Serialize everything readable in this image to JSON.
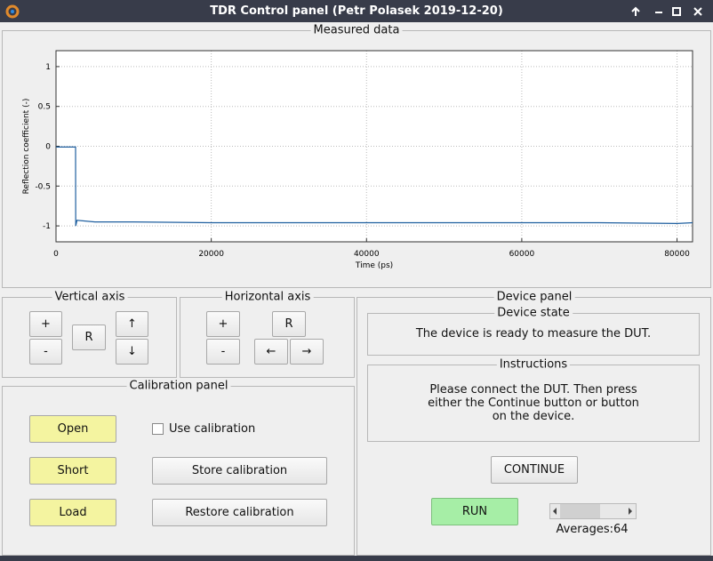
{
  "window": {
    "title": "TDR Control panel (Petr Polasek 2019-12-20)"
  },
  "chart_data": {
    "type": "line",
    "panel_title": "Measured data",
    "xlabel": "Time (ps)",
    "ylabel": "Reflection coefficient (-)",
    "x": [
      0,
      2400,
      2520,
      2530,
      2540,
      2700,
      5000,
      10000,
      20000,
      30000,
      40000,
      50000,
      60000,
      70000,
      80000,
      82000
    ],
    "values": [
      -0.01,
      -0.01,
      -0.01,
      -0.6,
      -1.0,
      -0.93,
      -0.95,
      -0.95,
      -0.96,
      -0.96,
      -0.96,
      -0.96,
      -0.96,
      -0.96,
      -0.97,
      -0.96
    ],
    "color": "#1f5f9f",
    "xlim": [
      0,
      82000
    ],
    "ylim": [
      -1.2,
      1.2
    ],
    "xticks": [
      0,
      20000,
      40000,
      60000,
      80000
    ],
    "yticks": [
      -1,
      -0.5,
      0,
      0.5,
      1
    ],
    "grid": true
  },
  "vertical_axis": {
    "title": "Vertical axis",
    "buttons": [
      "+",
      "-",
      "R",
      "↑",
      "↓"
    ]
  },
  "horizontal_axis": {
    "title": "Horizontal axis",
    "buttons": [
      "+",
      "-",
      "R",
      "←",
      "→"
    ]
  },
  "calibration": {
    "title": "Calibration panel",
    "buttons": [
      "Open",
      "Short",
      "Load",
      "Store calibration",
      "Restore calibration"
    ],
    "checkbox": "Use calibration"
  },
  "device": {
    "title": "Device panel",
    "state_title": "Device state",
    "state": "The device is ready to measure the DUT.",
    "instructions_title": "Instructions",
    "instructions": "Please connect the DUT. Then press either the Continue button or button on the device.",
    "continue": "CONTINUE",
    "run": "RUN",
    "averages": "Averages:64"
  }
}
